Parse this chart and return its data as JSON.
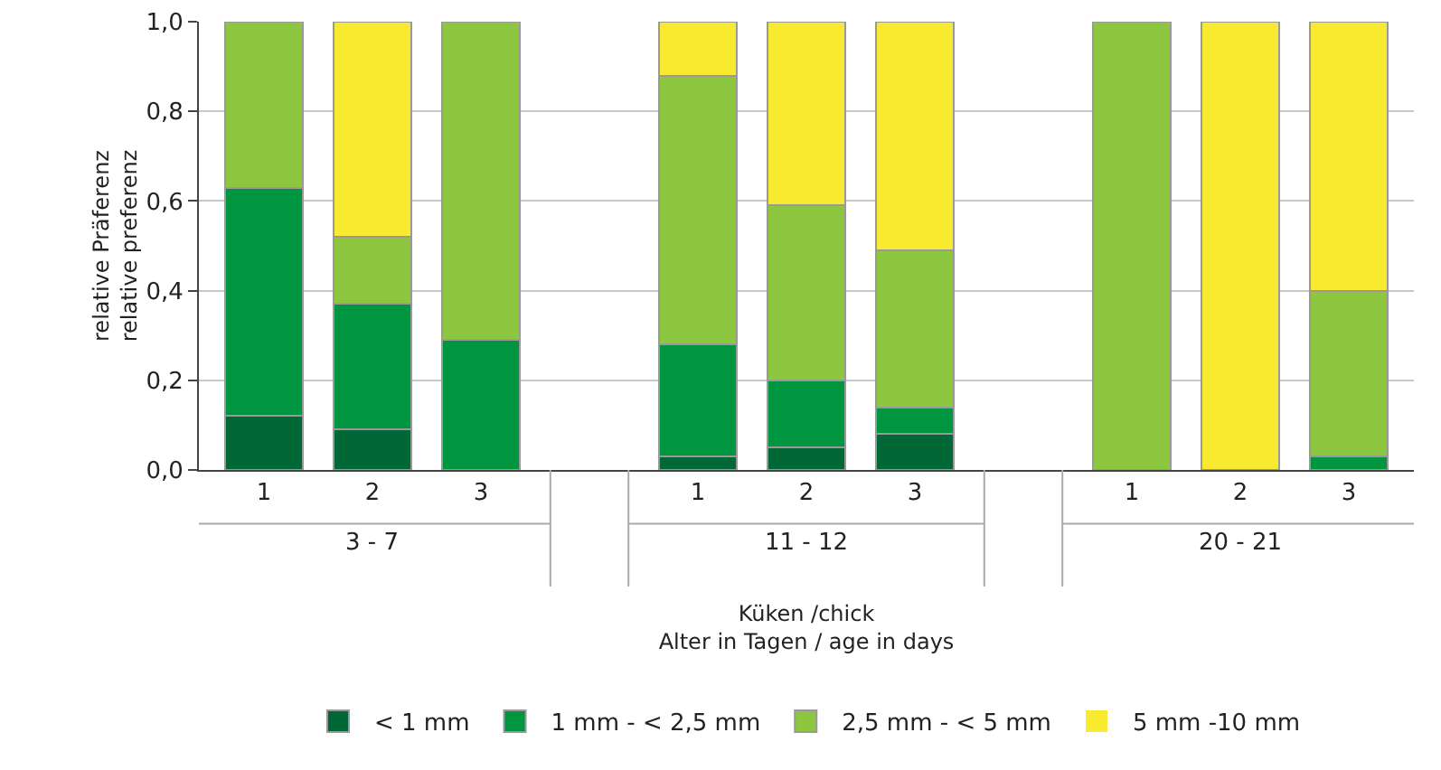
{
  "chart_data": {
    "type": "bar",
    "stacked": true,
    "ylabel": "relative Präferenz\nrelative preferenz",
    "xlabel": "Küken /chick\nAlter in Tagen / age in days",
    "categories": [
      "1",
      "2",
      "3",
      null,
      "1",
      "2",
      "3",
      null,
      "1",
      "2",
      "3"
    ],
    "annotations": [
      "3 - 7",
      "11 - 12",
      "20 - 21"
    ],
    "series": [
      {
        "name": "< 1 mm",
        "color": "#006837",
        "values": [
          0.12,
          0.09,
          0,
          null,
          0.03,
          0.05,
          0.08,
          null,
          0,
          0,
          0
        ]
      },
      {
        "name": "1 mm - < 2,5 mm",
        "color": "#009640",
        "values": [
          0.51,
          0.28,
          0.29,
          null,
          0.25,
          0.15,
          0.06,
          null,
          0,
          0,
          0.03
        ]
      },
      {
        "name": "2,5 mm - < 5 mm",
        "color": "#8dc63f",
        "values": [
          0.37,
          0.15,
          0.71,
          null,
          0.6,
          0.39,
          0.35,
          null,
          1,
          0,
          0.37
        ]
      },
      {
        "name": "5 mm -10 mm",
        "color": "#f7ea2f",
        "values": [
          0,
          0.48,
          0,
          null,
          0.12,
          0.41,
          0.51,
          null,
          0,
          1,
          0.6
        ]
      }
    ],
    "ylim": [
      0,
      1
    ],
    "yticks": [
      {
        "value": 0,
        "label": "0,0"
      },
      {
        "value": 0.2,
        "label": "0,2"
      },
      {
        "value": 0.4,
        "label": "0,4"
      },
      {
        "value": 0.6,
        "label": "0,6"
      },
      {
        "value": 0.8,
        "label": "0,8"
      },
      {
        "value": 1,
        "label": "1,0"
      }
    ],
    "grid": "y",
    "legend": "bottom"
  }
}
